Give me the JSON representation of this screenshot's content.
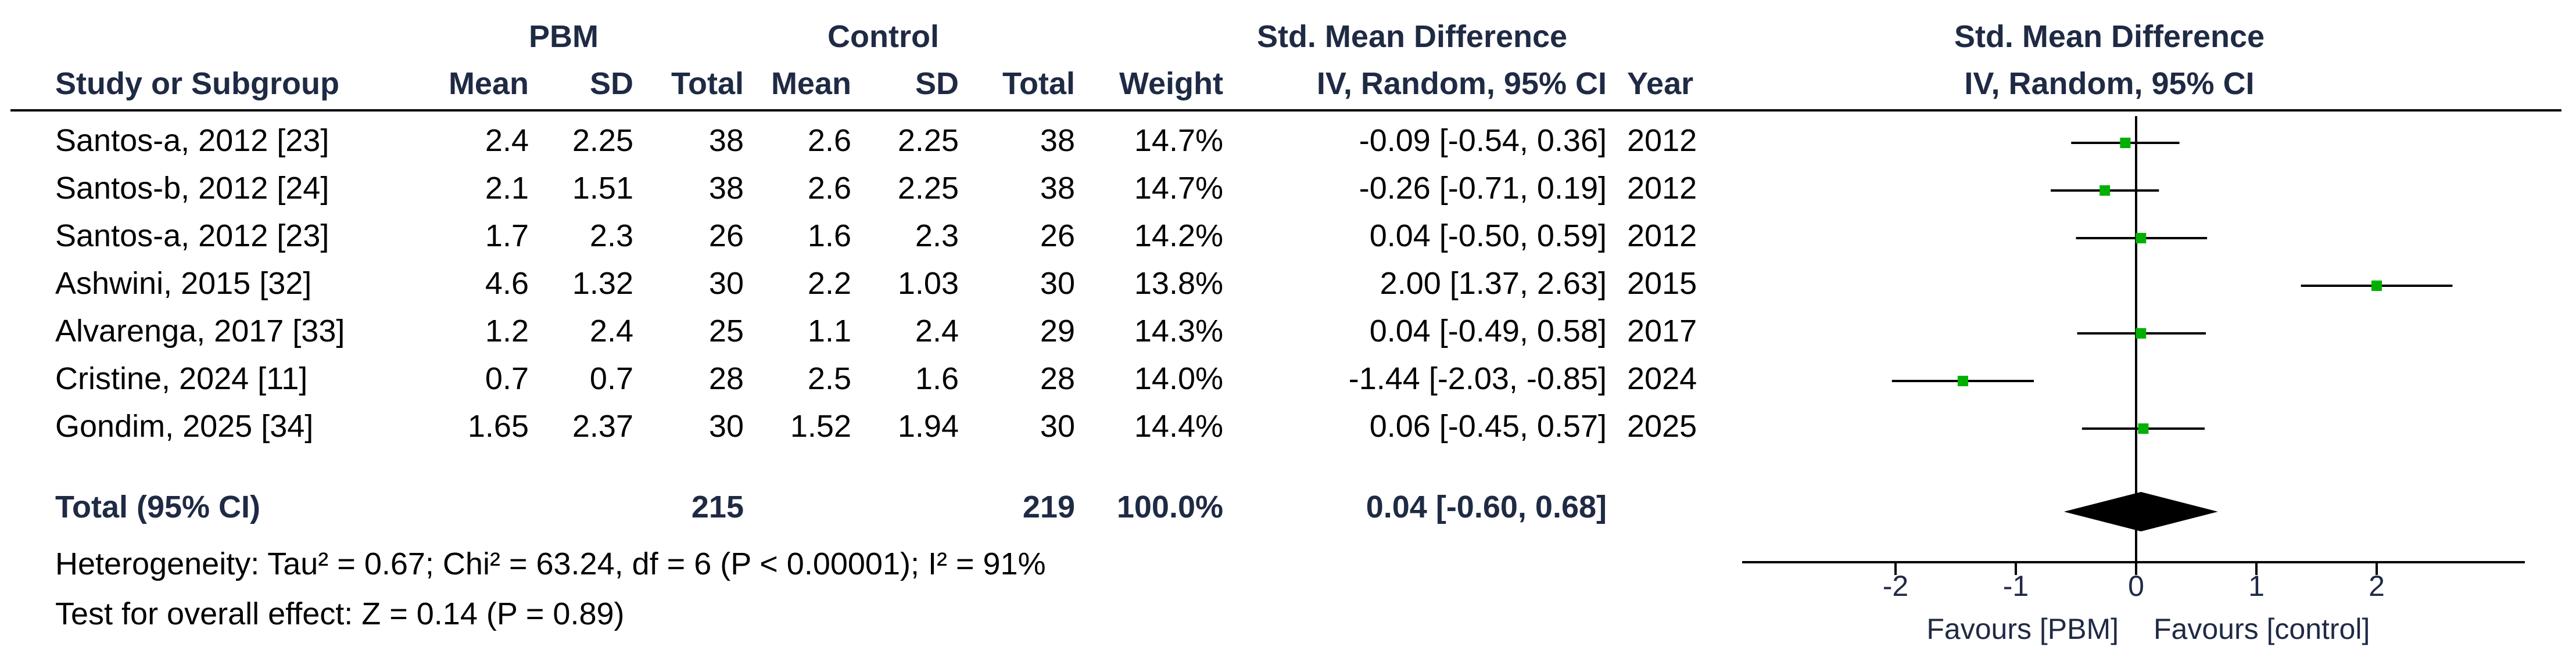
{
  "headers": {
    "group_pbm": "PBM",
    "group_control": "Control",
    "smd_title": "Std. Mean Difference",
    "smd_subtitle": "IV, Random, 95% CI",
    "col_study": "Study or Subgroup",
    "col_mean": "Mean",
    "col_sd": "SD",
    "col_total": "Total",
    "col_mean2": "Mean",
    "col_sd2": "SD",
    "col_total2": "Total",
    "col_weight": "Weight",
    "col_smd": "IV, Random, 95% CI",
    "col_year": "Year",
    "plot_title": "Std. Mean Difference",
    "plot_subtitle": "IV, Random, 95% CI"
  },
  "studies": [
    {
      "name": "Santos-a, 2012 [23]",
      "pbm_mean": "2.4",
      "pbm_sd": "2.25",
      "pbm_total": "38",
      "ctl_mean": "2.6",
      "ctl_sd": "2.25",
      "ctl_total": "38",
      "weight": "14.7%",
      "smd_text": "-0.09 [-0.54, 0.36]",
      "year": "2012"
    },
    {
      "name": "Santos-b, 2012 [24]",
      "pbm_mean": "2.1",
      "pbm_sd": "1.51",
      "pbm_total": "38",
      "ctl_mean": "2.6",
      "ctl_sd": "2.25",
      "ctl_total": "38",
      "weight": "14.7%",
      "smd_text": "-0.26 [-0.71, 0.19]",
      "year": "2012"
    },
    {
      "name": "Santos-a, 2012 [23]",
      "pbm_mean": "1.7",
      "pbm_sd": "2.3",
      "pbm_total": "26",
      "ctl_mean": "1.6",
      "ctl_sd": "2.3",
      "ctl_total": "26",
      "weight": "14.2%",
      "smd_text": "0.04 [-0.50, 0.59]",
      "year": "2012"
    },
    {
      "name": "Ashwini, 2015 [32]",
      "pbm_mean": "4.6",
      "pbm_sd": "1.32",
      "pbm_total": "30",
      "ctl_mean": "2.2",
      "ctl_sd": "1.03",
      "ctl_total": "30",
      "weight": "13.8%",
      "smd_text": "2.00 [1.37, 2.63]",
      "year": "2015"
    },
    {
      "name": "Alvarenga, 2017 [33]",
      "pbm_mean": "1.2",
      "pbm_sd": "2.4",
      "pbm_total": "25",
      "ctl_mean": "1.1",
      "ctl_sd": "2.4",
      "ctl_total": "29",
      "weight": "14.3%",
      "smd_text": "0.04 [-0.49, 0.58]",
      "year": "2017"
    },
    {
      "name": "Cristine, 2024 [11]",
      "pbm_mean": "0.7",
      "pbm_sd": "0.7",
      "pbm_total": "28",
      "ctl_mean": "2.5",
      "ctl_sd": "1.6",
      "ctl_total": "28",
      "weight": "14.0%",
      "smd_text": "-1.44 [-2.03, -0.85]",
      "year": "2024"
    },
    {
      "name": "Gondim, 2025 [34]",
      "pbm_mean": "1.65",
      "pbm_sd": "2.37",
      "pbm_total": "30",
      "ctl_mean": "1.52",
      "ctl_sd": "1.94",
      "ctl_total": "30",
      "weight": "14.4%",
      "smd_text": "0.06 [-0.45, 0.57]",
      "year": "2025"
    }
  ],
  "total": {
    "label": "Total (95% CI)",
    "pbm_total": "215",
    "ctl_total": "219",
    "weight": "100.0%",
    "smd_text": "0.04 [-0.60, 0.68]"
  },
  "footer": {
    "heterogeneity": "Heterogeneity: Tau² = 0.67; Chi² = 63.24, df = 6 (P < 0.00001); I² = 91%",
    "overall_effect": "Test for overall effect: Z = 0.14 (P = 0.89)"
  },
  "chart_data": {
    "type": "forest",
    "title": "Std. Mean Difference",
    "subtitle": "IV, Random, 95% CI",
    "xlim": [
      -2.6,
      3.2
    ],
    "ticks": [
      -2,
      -1,
      0,
      1,
      2
    ],
    "tick_labels": [
      "-2",
      "-1",
      "0",
      "1",
      "2"
    ],
    "xlabel_left": "Favours [PBM]",
    "xlabel_right": "Favours [control]",
    "point_color": "#00b000",
    "diamond_color": "#000000",
    "studies": [
      {
        "label": "Santos-a, 2012 [23]",
        "estimate": -0.09,
        "lower": -0.54,
        "upper": 0.36,
        "weight": 14.7
      },
      {
        "label": "Santos-b, 2012 [24]",
        "estimate": -0.26,
        "lower": -0.71,
        "upper": 0.19,
        "weight": 14.7
      },
      {
        "label": "Santos-a, 2012 [23]",
        "estimate": 0.04,
        "lower": -0.5,
        "upper": 0.59,
        "weight": 14.2
      },
      {
        "label": "Ashwini, 2015 [32]",
        "estimate": 2.0,
        "lower": 1.37,
        "upper": 2.63,
        "weight": 13.8
      },
      {
        "label": "Alvarenga, 2017 [33]",
        "estimate": 0.04,
        "lower": -0.49,
        "upper": 0.58,
        "weight": 14.3
      },
      {
        "label": "Cristine, 2024 [11]",
        "estimate": -1.44,
        "lower": -2.03,
        "upper": -0.85,
        "weight": 14.0
      },
      {
        "label": "Gondim, 2025 [34]",
        "estimate": 0.06,
        "lower": -0.45,
        "upper": 0.57,
        "weight": 14.4
      }
    ],
    "pooled": {
      "label": "Total (95% CI)",
      "estimate": 0.04,
      "lower": -0.6,
      "upper": 0.68
    }
  }
}
